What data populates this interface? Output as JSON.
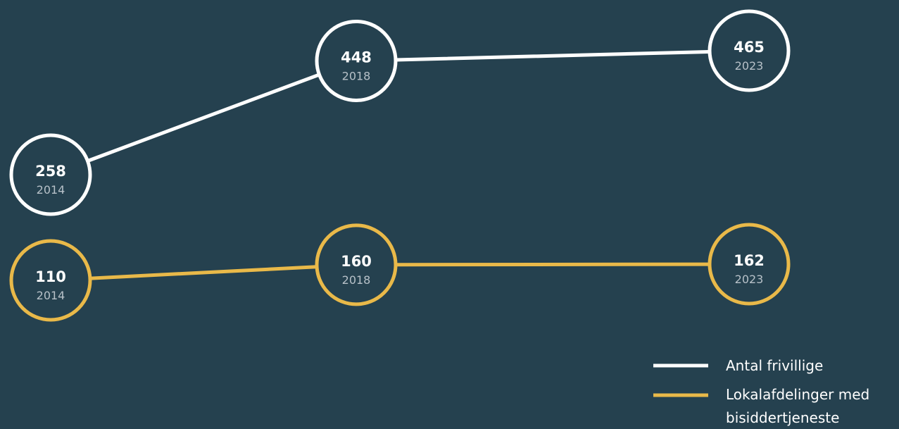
{
  "chart_data": {
    "type": "line",
    "title": "",
    "xlabel": "",
    "ylabel": "",
    "x": [
      "2014",
      "2018",
      "2023"
    ],
    "grid": false,
    "legend_position": "bottom-right",
    "series": [
      {
        "name": "Antal frivillige",
        "color": "#ffffff",
        "values": [
          258,
          448,
          465
        ],
        "value_labels": [
          "258",
          "448",
          "465"
        ],
        "year_labels": [
          "2014",
          "2018",
          "2023"
        ]
      },
      {
        "name": "Lokalafdelinger med bisiddertjeneste",
        "name_lines": [
          "Lokalafdelinger med",
          "bisiddertjeneste"
        ],
        "color": "#e9b949",
        "values": [
          110,
          160,
          162
        ],
        "value_labels": [
          "110",
          "160",
          "162"
        ],
        "year_labels": [
          "2014",
          "2018",
          "2023"
        ]
      }
    ]
  },
  "colors": {
    "background": "#25414f",
    "node_fill": "#25414f",
    "year_text": "#b7c1c8"
  }
}
